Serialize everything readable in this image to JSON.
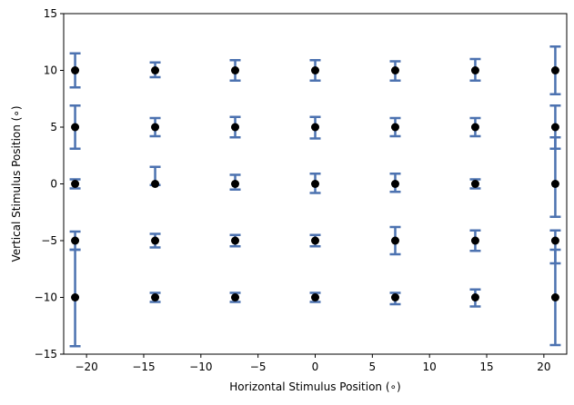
{
  "chart_data": {
    "type": "scatter",
    "title": "",
    "xlabel": "Horizontal Stimulus Position (∘)",
    "ylabel": "Vertical Stimulus Position (∘)",
    "xlim": [
      -22,
      22
    ],
    "ylim": [
      -15,
      15
    ],
    "xticks": [
      -20,
      -15,
      -10,
      -5,
      0,
      5,
      10,
      15,
      20
    ],
    "yticks": [
      -15,
      -10,
      -5,
      0,
      5,
      10,
      15
    ],
    "grid": false,
    "legend": "none",
    "marker_color": "#000000",
    "errorbar_color": "#4c72b0",
    "points": [
      {
        "x": -21,
        "y": 10,
        "err_low": 8.5,
        "err_high": 11.5
      },
      {
        "x": -21,
        "y": 5,
        "err_low": 3.1,
        "err_high": 6.9
      },
      {
        "x": -21,
        "y": 0,
        "err_low": -0.4,
        "err_high": 0.4
      },
      {
        "x": -21,
        "y": -5,
        "err_low": -5.8,
        "err_high": -4.2
      },
      {
        "x": -21,
        "y": -10,
        "err_low": -14.3,
        "err_high": -5.8
      },
      {
        "x": -14,
        "y": 10,
        "err_low": 9.4,
        "err_high": 10.7
      },
      {
        "x": -14,
        "y": 5,
        "err_low": 4.2,
        "err_high": 5.8
      },
      {
        "x": -14,
        "y": 0,
        "err_low": -0.1,
        "err_high": 1.5
      },
      {
        "x": -14,
        "y": -5,
        "err_low": -5.6,
        "err_high": -4.4
      },
      {
        "x": -14,
        "y": -10,
        "err_low": -10.4,
        "err_high": -9.6
      },
      {
        "x": -7,
        "y": 10,
        "err_low": 9.1,
        "err_high": 10.9
      },
      {
        "x": -7,
        "y": 5,
        "err_low": 4.1,
        "err_high": 5.9
      },
      {
        "x": -7,
        "y": 0,
        "err_low": -0.5,
        "err_high": 0.8
      },
      {
        "x": -7,
        "y": -5,
        "err_low": -5.5,
        "err_high": -4.5
      },
      {
        "x": -7,
        "y": -10,
        "err_low": -10.4,
        "err_high": -9.6
      },
      {
        "x": 0,
        "y": 10,
        "err_low": 9.1,
        "err_high": 10.9
      },
      {
        "x": 0,
        "y": 5,
        "err_low": 4.0,
        "err_high": 5.9
      },
      {
        "x": 0,
        "y": 0,
        "err_low": -0.8,
        "err_high": 0.9
      },
      {
        "x": 0,
        "y": -5,
        "err_low": -5.5,
        "err_high": -4.5
      },
      {
        "x": 0,
        "y": -10,
        "err_low": -10.4,
        "err_high": -9.6
      },
      {
        "x": 7,
        "y": 10,
        "err_low": 9.1,
        "err_high": 10.8
      },
      {
        "x": 7,
        "y": 5,
        "err_low": 4.2,
        "err_high": 5.8
      },
      {
        "x": 7,
        "y": 0,
        "err_low": -0.7,
        "err_high": 0.9
      },
      {
        "x": 7,
        "y": -5,
        "err_low": -6.2,
        "err_high": -3.8
      },
      {
        "x": 7,
        "y": -10,
        "err_low": -10.6,
        "err_high": -9.6
      },
      {
        "x": 14,
        "y": 10,
        "err_low": 9.1,
        "err_high": 11.0
      },
      {
        "x": 14,
        "y": 5,
        "err_low": 4.2,
        "err_high": 5.8
      },
      {
        "x": 14,
        "y": 0,
        "err_low": -0.4,
        "err_high": 0.4
      },
      {
        "x": 14,
        "y": -5,
        "err_low": -5.9,
        "err_high": -4.1
      },
      {
        "x": 14,
        "y": -10,
        "err_low": -10.8,
        "err_high": -9.3
      },
      {
        "x": 21,
        "y": 10,
        "err_low": 7.9,
        "err_high": 12.1
      },
      {
        "x": 21,
        "y": 5,
        "err_low": 3.1,
        "err_high": 6.9
      },
      {
        "x": 21,
        "y": 0,
        "err_low": -2.9,
        "err_high": 4.1
      },
      {
        "x": 21,
        "y": -5,
        "err_low": -7.0,
        "err_high": -4.1
      },
      {
        "x": 21,
        "y": -10,
        "err_low": -14.2,
        "err_high": -5.8
      }
    ]
  }
}
